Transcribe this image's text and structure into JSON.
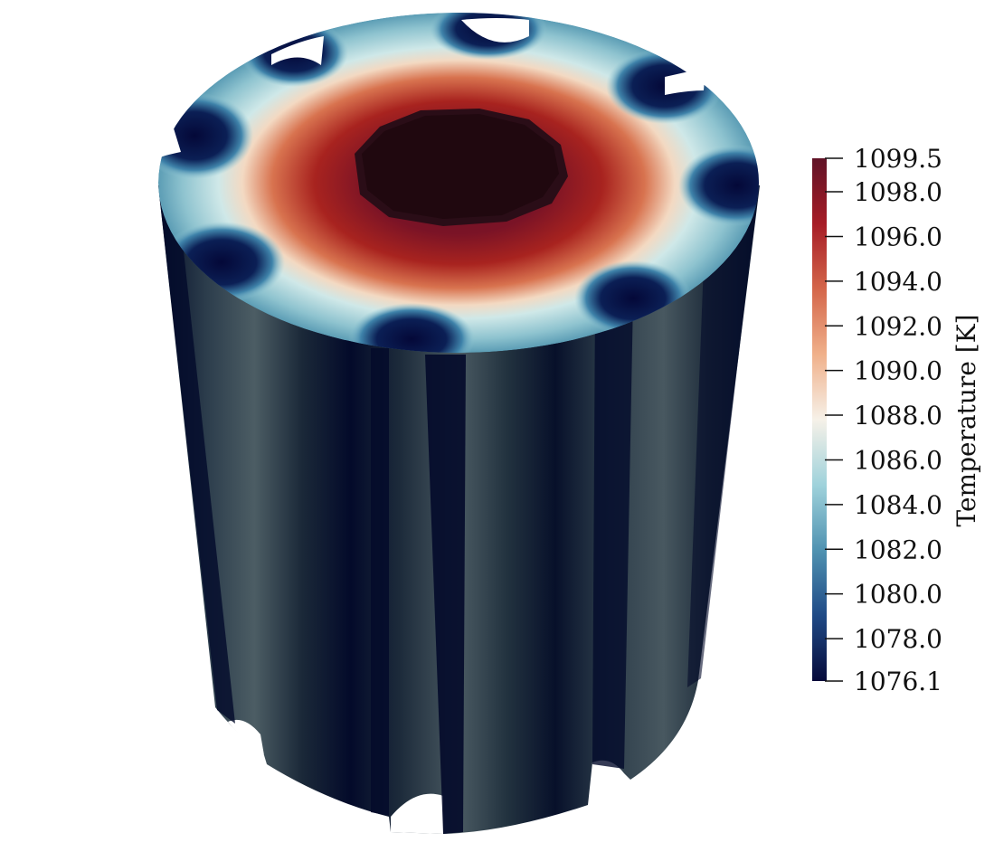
{
  "figure": {
    "description_free": true
  },
  "legend": {
    "title": "Temperature [K]",
    "min": 1076.1,
    "max": 1099.5,
    "ticks": [
      {
        "value": 1099.5,
        "label": "1099.5"
      },
      {
        "value": 1098.0,
        "label": "1098.0"
      },
      {
        "value": 1096.0,
        "label": "1096.0"
      },
      {
        "value": 1094.0,
        "label": "1094.0"
      },
      {
        "value": 1092.0,
        "label": "1092.0"
      },
      {
        "value": 1090.0,
        "label": "1090.0"
      },
      {
        "value": 1088.0,
        "label": "1088.0"
      },
      {
        "value": 1086.0,
        "label": "1086.0"
      },
      {
        "value": 1084.0,
        "label": "1084.0"
      },
      {
        "value": 1082.0,
        "label": "1082.0"
      },
      {
        "value": 1080.0,
        "label": "1080.0"
      },
      {
        "value": 1078.0,
        "label": "1078.0"
      },
      {
        "value": 1076.1,
        "label": "1076.1"
      }
    ],
    "colormap": [
      "#060a3a",
      "#1f4a86",
      "#4f92b1",
      "#9fd2db",
      "#f6f1e8",
      "#f0b08a",
      "#d4664a",
      "#a61c26",
      "#611327"
    ]
  }
}
